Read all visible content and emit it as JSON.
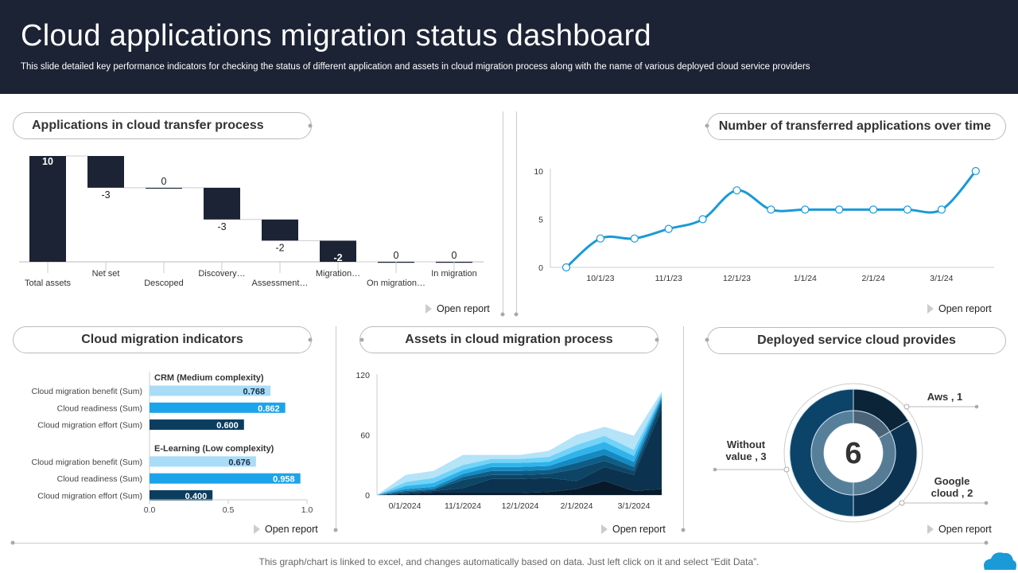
{
  "header": {
    "title": "Cloud applications migration status dashboard",
    "subtitle": "This slide detailed key performance indicators for checking the status of different application and assets in cloud migration process along with the name of various deployed cloud service providers"
  },
  "panels": {
    "transfer": {
      "title": "Applications in cloud transfer process",
      "open_report": "Open report"
    },
    "over_time": {
      "title": "Number of transferred applications over time",
      "open_report": "Open report"
    },
    "indicators": {
      "title": "Cloud migration indicators",
      "open_report": "Open report"
    },
    "assets": {
      "title": "Assets in cloud migration process",
      "open_report": "Open report"
    },
    "providers": {
      "title": "Deployed service cloud provides",
      "open_report": "Open report"
    }
  },
  "footer": {
    "note": "This graph/chart is linked to excel,  and changes automatically based on data. Just left click on it and select “Edit Data”.",
    "logo_icon": "cloud-icon",
    "logo_color": "#1a9ad6"
  },
  "chart_data": [
    {
      "type": "bar",
      "subtype": "waterfall",
      "categories": [
        "Total assets",
        "Net set",
        "Descoped",
        "Discovery…",
        "Assessment…",
        "Migration…",
        "On migration…",
        "In migration"
      ],
      "values": [
        10,
        -3,
        0,
        -3,
        -2,
        -2,
        0,
        0
      ],
      "color": "#1c2335"
    },
    {
      "type": "line",
      "x": [
        "9/15/23",
        "10/1/23",
        "10/15/23",
        "11/1/23",
        "11/15/23",
        "12/1/23",
        "12/15/23",
        "1/1/24",
        "1/15/24",
        "2/1/24",
        "2/15/24",
        "3/1/24",
        "3/15/24"
      ],
      "values": [
        0,
        3,
        3,
        4,
        5,
        8,
        6,
        6,
        6,
        6,
        6,
        6,
        10
      ],
      "xticks": [
        "10/1/23",
        "11/1/23",
        "12/1/23",
        "1/1/24",
        "2/1/24",
        "3/1/24"
      ],
      "yticks": [
        "0",
        "5",
        "10"
      ],
      "ylim": [
        0,
        10
      ],
      "color": "#1a9ad6"
    },
    {
      "type": "bar",
      "orientation": "horizontal",
      "groups": [
        {
          "name": "CRM (Medium complexity)",
          "items": [
            {
              "label": "Cloud migration benefit (Sum)",
              "value": 0.768,
              "display": "0.768"
            },
            {
              "label": "Cloud readiness (Sum)",
              "value": 0.862,
              "display": "0.862"
            },
            {
              "label": "Cloud migration effort (Sum)",
              "value": 0.6,
              "display": "0.600"
            }
          ]
        },
        {
          "name": "E-Learning (Low complexity)",
          "items": [
            {
              "label": "Cloud migration benefit (Sum)",
              "value": 0.676,
              "display": "0.676"
            },
            {
              "label": "Cloud readiness (Sum)",
              "value": 0.958,
              "display": "0.958"
            },
            {
              "label": "Cloud migration effort (Sum)",
              "value": 0.4,
              "display": "0.400"
            }
          ]
        }
      ],
      "xticks": [
        "0.0",
        "0.5",
        "1.0"
      ],
      "xlim": [
        0,
        1
      ],
      "colors": [
        "#a8dcf7",
        "#1ca4ea",
        "#0b3d5e"
      ]
    },
    {
      "type": "area",
      "stacked": true,
      "xticks": [
        "0/1/2024",
        "11/1/2024",
        "12/1/2024",
        "2/1/2024",
        "3/1/2024"
      ],
      "yticks": [
        "0",
        "60",
        "120"
      ],
      "ylim": [
        0,
        120
      ],
      "series": [
        {
          "values": [
            0,
            1,
            2,
            2,
            2,
            2,
            3,
            6,
            14,
            4,
            6
          ],
          "color": "#08192a"
        },
        {
          "values": [
            0,
            1,
            2,
            5,
            14,
            14,
            14,
            8,
            14,
            16,
            80
          ],
          "color": "#0b3350"
        },
        {
          "values": [
            0,
            1,
            1,
            8,
            4,
            4,
            4,
            12,
            6,
            4,
            6
          ],
          "color": "#0d4566"
        },
        {
          "values": [
            0,
            1,
            1,
            3,
            4,
            4,
            4,
            6,
            6,
            4,
            3
          ],
          "color": "#0f5d86"
        },
        {
          "values": [
            0,
            2,
            2,
            3,
            4,
            4,
            4,
            6,
            6,
            5,
            2
          ],
          "color": "#1589c2"
        },
        {
          "values": [
            0,
            3,
            4,
            4,
            4,
            4,
            4,
            6,
            7,
            6,
            2
          ],
          "color": "#2fb3ea"
        },
        {
          "values": [
            0,
            4,
            5,
            5,
            4,
            4,
            5,
            6,
            6,
            6,
            2
          ],
          "color": "#72d2f7"
        },
        {
          "values": [
            0,
            7,
            7,
            10,
            4,
            4,
            6,
            10,
            9,
            14,
            2
          ],
          "color": "#b5e3f8"
        }
      ]
    },
    {
      "type": "pie",
      "subtype": "donut",
      "total": "6",
      "slices": [
        {
          "label": "Aws , 1",
          "value": 1,
          "color": "#0b2438",
          "inner": "#4b6376"
        },
        {
          "label": "Google cloud , 2",
          "value": 2,
          "color": "#0b3351",
          "inner": "#567b94"
        },
        {
          "label": "Without value , 3",
          "value": 3,
          "color": "#0c4469",
          "inner": "#567f9a"
        }
      ]
    }
  ]
}
